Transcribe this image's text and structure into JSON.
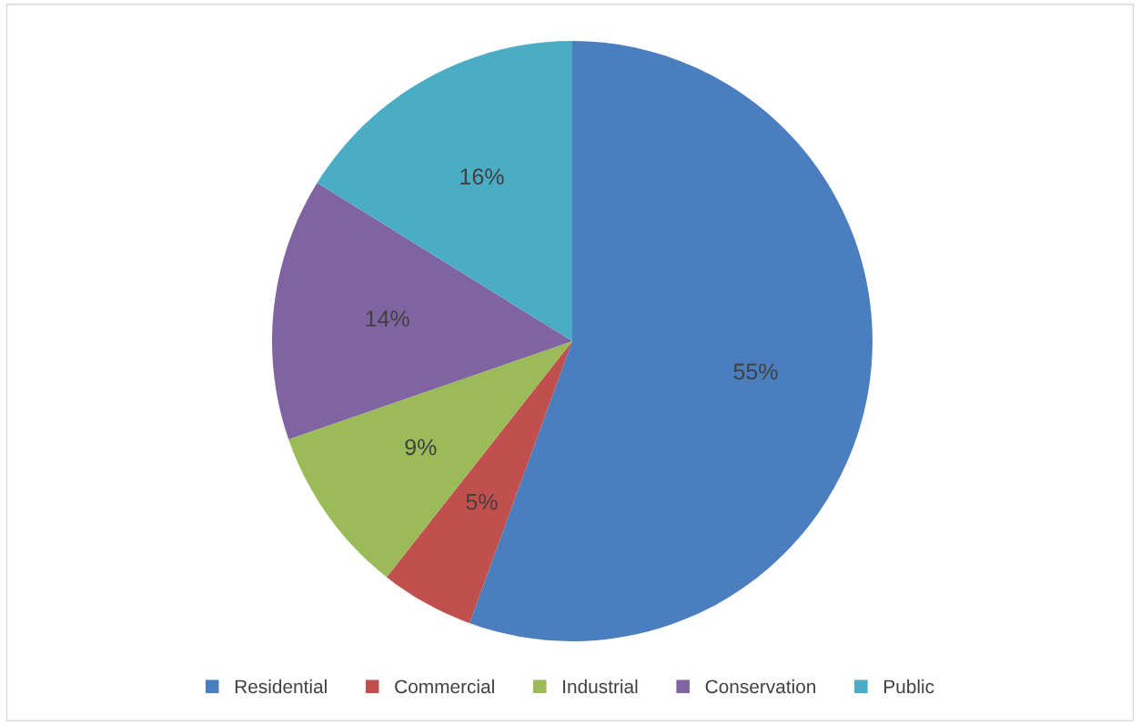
{
  "chart_data": {
    "type": "pie",
    "categories": [
      "Residential",
      "Commercial",
      "Industrial",
      "Conservation",
      "Public"
    ],
    "values": [
      55,
      5,
      9,
      14,
      16
    ],
    "colors": [
      "#4a7ebf",
      "#c0504d",
      "#9bbb59",
      "#8064a2",
      "#4bacc6"
    ],
    "value_labels": [
      "55%",
      "5%",
      "9%",
      "14%",
      "16%"
    ],
    "legend": "bottom"
  }
}
